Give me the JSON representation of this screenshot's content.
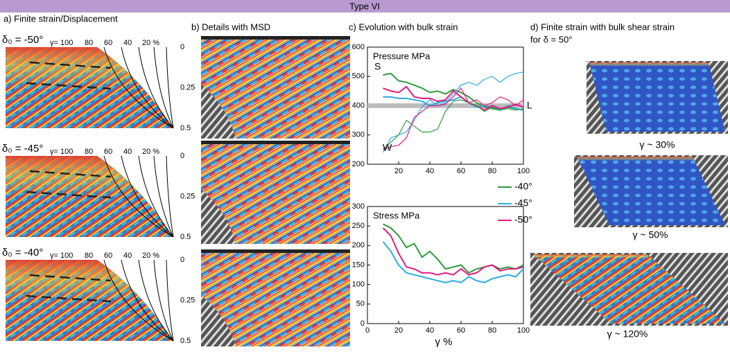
{
  "header": {
    "title": "Type VI"
  },
  "panel_a": {
    "title": "a) Finite strain/Displacement",
    "subpanels": [
      {
        "label": "δ₀ = -50°"
      },
      {
        "label": "δ₀ = -45°"
      },
      {
        "label": "δ₀ = -40°"
      }
    ],
    "gamma_ticks": [
      "γ= 100",
      "80",
      "60",
      "40",
      "20 %"
    ],
    "depth_ticks": [
      "0",
      "0.25",
      "0.5"
    ]
  },
  "panel_b": {
    "title": "b) Details with MSD"
  },
  "panel_c": {
    "title": "c) Evolution with bulk strain"
  },
  "chart_data": [
    {
      "type": "line",
      "title": "Pressure MPa",
      "x": [
        10,
        15,
        20,
        25,
        30,
        35,
        40,
        45,
        50,
        55,
        60,
        65,
        70,
        75,
        80,
        85,
        90,
        95,
        100
      ],
      "xlim": [
        0,
        100
      ],
      "xticks": [
        20,
        40,
        60,
        80,
        100
      ],
      "ylim": [
        200,
        600
      ],
      "yticks": [
        200,
        300,
        400,
        500,
        600
      ],
      "band": [
        392,
        408
      ],
      "band_color": "#bbbbbb",
      "annotations": [
        "S",
        "W",
        "L"
      ],
      "series": [
        {
          "color": "#2e9a3c",
          "values": [
            505,
            510,
            485,
            480,
            470,
            460,
            445,
            450,
            440,
            455,
            445,
            430,
            410,
            395,
            390,
            385,
            395,
            390,
            385
          ]
        },
        {
          "color": "#29abe2",
          "values": [
            430,
            430,
            425,
            425,
            420,
            415,
            400,
            410,
            415,
            420,
            430,
            410,
            395,
            400,
            395,
            385,
            400,
            390,
            385
          ]
        },
        {
          "color": "#e6197f",
          "values": [
            460,
            450,
            445,
            465,
            430,
            425,
            425,
            415,
            420,
            450,
            430,
            410,
            400,
            385,
            400,
            390,
            395,
            405,
            395
          ]
        },
        {
          "color": "#2e9a3c",
          "values": [
            250,
            275,
            300,
            350,
            330,
            310,
            310,
            320,
            380,
            415,
            420,
            410,
            400,
            380,
            395,
            385,
            390,
            385,
            390
          ]
        },
        {
          "color": "#29abe2",
          "values": [
            240,
            290,
            300,
            310,
            350,
            395,
            420,
            400,
            410,
            440,
            470,
            480,
            470,
            490,
            500,
            480,
            500,
            510,
            515
          ]
        },
        {
          "color": "#e6197f",
          "values": [
            250,
            260,
            265,
            290,
            360,
            380,
            400,
            400,
            405,
            430,
            460,
            410,
            420,
            400,
            410,
            430,
            420,
            400,
            420
          ]
        }
      ]
    },
    {
      "type": "line",
      "title": "Stress MPa",
      "x_label": "γ %",
      "x": [
        10,
        15,
        20,
        25,
        30,
        35,
        40,
        45,
        50,
        55,
        60,
        65,
        70,
        75,
        80,
        85,
        90,
        95,
        100
      ],
      "xlim": [
        0,
        100
      ],
      "xticks": [
        0,
        20,
        40,
        60,
        80,
        100
      ],
      "ylim": [
        0,
        300
      ],
      "yticks": [
        0,
        50,
        100,
        150,
        200,
        250,
        300
      ],
      "series": [
        {
          "name": "-40°",
          "color": "#2e9a3c",
          "values": [
            255,
            245,
            225,
            195,
            205,
            170,
            185,
            165,
            140,
            145,
            150,
            130,
            140,
            145,
            150,
            140,
            145,
            140,
            150
          ]
        },
        {
          "name": "-45°",
          "color": "#29abe2",
          "values": [
            210,
            185,
            150,
            130,
            125,
            120,
            115,
            110,
            105,
            110,
            105,
            120,
            110,
            105,
            115,
            120,
            125,
            120,
            140
          ]
        },
        {
          "name": "-50°",
          "color": "#e6197f",
          "values": [
            245,
            225,
            180,
            145,
            140,
            130,
            130,
            125,
            130,
            125,
            140,
            125,
            130,
            145,
            150,
            135,
            140,
            140,
            145
          ]
        }
      ]
    }
  ],
  "panel_d": {
    "title_line1": "d)  Finite strain with  bulk shear strain",
    "title_line2": "for δ = 50°",
    "captions": [
      "γ ~ 30%",
      "γ ~ 50%",
      "γ ~ 120%"
    ]
  }
}
